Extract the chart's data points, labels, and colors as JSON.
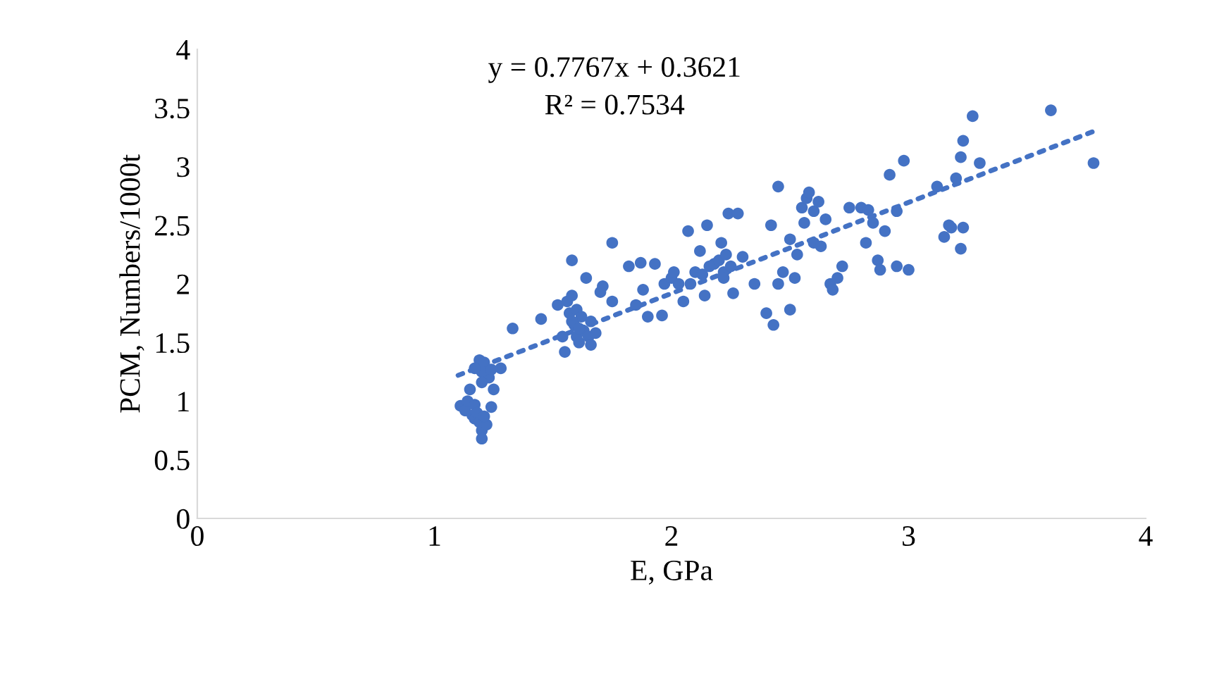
{
  "chart_data": {
    "type": "scatter",
    "xlabel": "E, GPa",
    "ylabel": "PCM, Numbers/1000t",
    "annotations": [
      "y = 0.7767x + 0.3621",
      "R² = 0.7534"
    ],
    "xlim": [
      0,
      4
    ],
    "xticks": [
      0,
      1,
      2,
      3,
      4
    ],
    "ylim": [
      0,
      4
    ],
    "yticks": [
      0,
      0.5,
      1,
      1.5,
      2,
      2.5,
      3,
      3.5,
      4
    ],
    "grid": false,
    "legend": false,
    "marker": "circle",
    "series": [
      {
        "color": "#4472c4",
        "x": [
          1.11,
          1.13,
          1.16,
          1.17,
          1.14,
          1.15,
          1.17,
          1.18,
          1.19,
          1.2,
          1.2,
          1.22,
          1.21,
          1.24,
          1.25,
          1.23,
          1.19,
          1.21,
          1.2,
          1.17,
          1.24,
          1.28,
          1.33,
          1.2,
          1.45,
          1.52,
          1.55,
          1.56,
          1.57,
          1.58,
          1.59,
          1.58,
          1.6,
          1.6,
          1.61,
          1.62,
          1.63,
          1.65,
          1.66,
          1.66,
          1.64,
          1.68,
          1.7,
          1.71,
          1.75,
          1.75,
          1.58,
          1.61,
          1.54,
          1.82,
          1.85,
          1.87,
          1.88,
          1.9,
          1.93,
          1.96,
          1.97,
          2.0,
          2.01,
          2.03,
          2.05,
          2.07,
          2.08,
          2.1,
          2.12,
          2.13,
          2.14,
          2.15,
          2.16,
          2.18,
          2.2,
          2.21,
          2.22,
          2.23,
          2.24,
          2.22,
          2.25,
          2.26,
          2.28,
          2.3,
          2.35,
          2.4,
          2.42,
          2.43,
          2.45,
          2.45,
          2.47,
          2.5,
          2.5,
          2.52,
          2.53,
          2.55,
          2.56,
          2.57,
          2.58,
          2.6,
          2.6,
          2.62,
          2.63,
          2.65,
          2.67,
          2.68,
          2.7,
          2.72,
          2.75,
          2.8,
          2.82,
          2.83,
          2.85,
          2.87,
          2.88,
          2.9,
          2.92,
          2.95,
          2.95,
          2.98,
          3.0,
          3.12,
          3.15,
          3.17,
          3.18,
          3.2,
          3.22,
          3.23,
          3.23,
          3.22,
          3.27,
          3.3,
          3.6,
          3.78
        ],
        "values": [
          0.96,
          0.92,
          0.88,
          0.85,
          1.0,
          1.1,
          0.97,
          0.9,
          0.82,
          0.75,
          0.68,
          0.8,
          0.87,
          0.95,
          1.1,
          1.2,
          1.35,
          1.33,
          1.25,
          1.28,
          1.27,
          1.28,
          1.62,
          1.16,
          1.7,
          1.82,
          1.42,
          1.85,
          1.75,
          1.9,
          1.65,
          2.2,
          1.78,
          1.55,
          1.5,
          1.72,
          1.6,
          1.55,
          1.48,
          1.68,
          2.05,
          1.58,
          1.93,
          1.98,
          1.85,
          2.35,
          1.68,
          1.62,
          1.55,
          2.15,
          1.82,
          2.18,
          1.95,
          1.72,
          2.17,
          1.73,
          2.0,
          2.05,
          2.1,
          2.0,
          1.85,
          2.45,
          2.0,
          2.1,
          2.28,
          2.08,
          1.9,
          2.5,
          2.15,
          2.17,
          2.2,
          2.35,
          2.1,
          2.25,
          2.6,
          2.05,
          2.15,
          1.92,
          2.6,
          2.23,
          2.0,
          1.75,
          2.5,
          1.65,
          2.0,
          2.83,
          2.1,
          2.38,
          1.78,
          2.05,
          2.25,
          2.65,
          2.52,
          2.73,
          2.78,
          2.35,
          2.62,
          2.7,
          2.32,
          2.55,
          2.0,
          1.95,
          2.05,
          2.15,
          2.65,
          2.65,
          2.35,
          2.63,
          2.52,
          2.2,
          2.12,
          2.45,
          2.93,
          2.62,
          2.15,
          3.05,
          2.12,
          2.83,
          2.4,
          2.5,
          2.48,
          2.9,
          3.08,
          3.22,
          2.48,
          2.3,
          3.43,
          3.03,
          3.48,
          3.03
        ]
      },
      {
        "type": "line",
        "color": "#4472c4",
        "line_style": "dotted",
        "marker": "none",
        "x": [
          1.1,
          3.78
        ],
        "values": [
          1.22,
          3.3
        ]
      }
    ]
  }
}
